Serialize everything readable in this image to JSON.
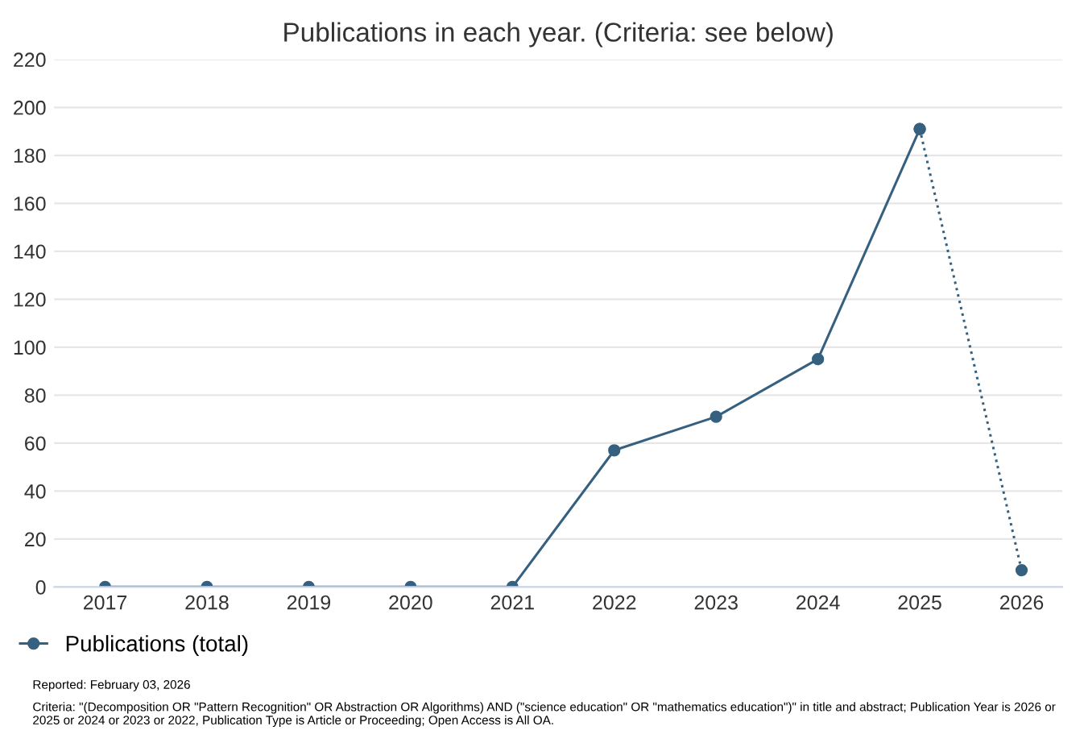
{
  "chart_data": {
    "type": "line",
    "title": "Publications in each year. (Criteria: see below)",
    "series": [
      {
        "name": "Publications (total)",
        "color": "#36607f",
        "x": [
          2017,
          2018,
          2019,
          2020,
          2021,
          2022,
          2023,
          2024,
          2025
        ],
        "values": [
          0,
          0,
          0,
          0,
          0,
          57,
          71,
          95,
          191
        ],
        "line_style": "solid"
      },
      {
        "color": "#36607f",
        "x": [
          2025,
          2026
        ],
        "values": [
          191,
          7
        ],
        "line_style": "dotted"
      }
    ],
    "xlim": [
      2016.5,
      2026.4
    ],
    "xticks": [
      2017,
      2018,
      2019,
      2020,
      2021,
      2022,
      2023,
      2024,
      2025,
      2026
    ],
    "ylim": [
      0,
      220
    ],
    "yticks": [
      0,
      20,
      40,
      60,
      80,
      100,
      120,
      140,
      160,
      180,
      200,
      220
    ],
    "grid": "y",
    "legend": "bottom left",
    "marker": "circle",
    "annotations": [
      "Reported: February 03, 2026",
      "Criteria: \"(Decomposition OR \"Pattern Recognition\" OR Abstraction OR Algorithms) AND (\"science education\" OR \"mathematics education\")\" in title and abstract; Publication Year is 2026 or 2025 or 2024 or 2023 or 2022, Publication Type is Article or Proceeding; Open Access is All OA."
    ]
  }
}
